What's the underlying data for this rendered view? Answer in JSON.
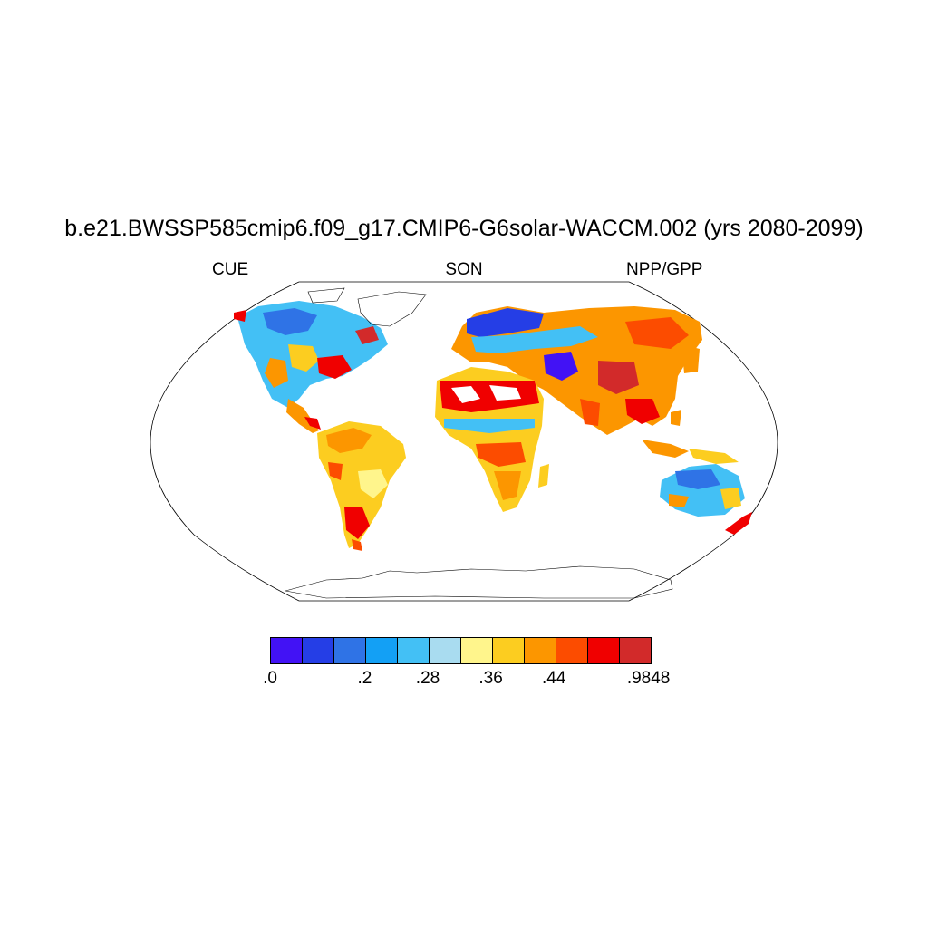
{
  "title": "b.e21.BWSSP585cmip6.f09_g17.CMIP6-G6solar-WACCM.002 (yrs 2080-2099)",
  "subtitle_left": "CUE",
  "subtitle_center": "SON",
  "subtitle_right": "NPP/GPP",
  "projection": "Robinson",
  "colorbar": {
    "colors": [
      "#4212f5",
      "#253ee6",
      "#2f73e6",
      "#13a0f5",
      "#43c0f5",
      "#a9dcf0",
      "#fff58c",
      "#fccd20",
      "#fc9600",
      "#fc4c00",
      "#f00000",
      "#d22a2a"
    ],
    "labels": [
      ".0",
      ".2",
      ".28",
      ".36",
      ".44",
      ".9848"
    ]
  }
}
